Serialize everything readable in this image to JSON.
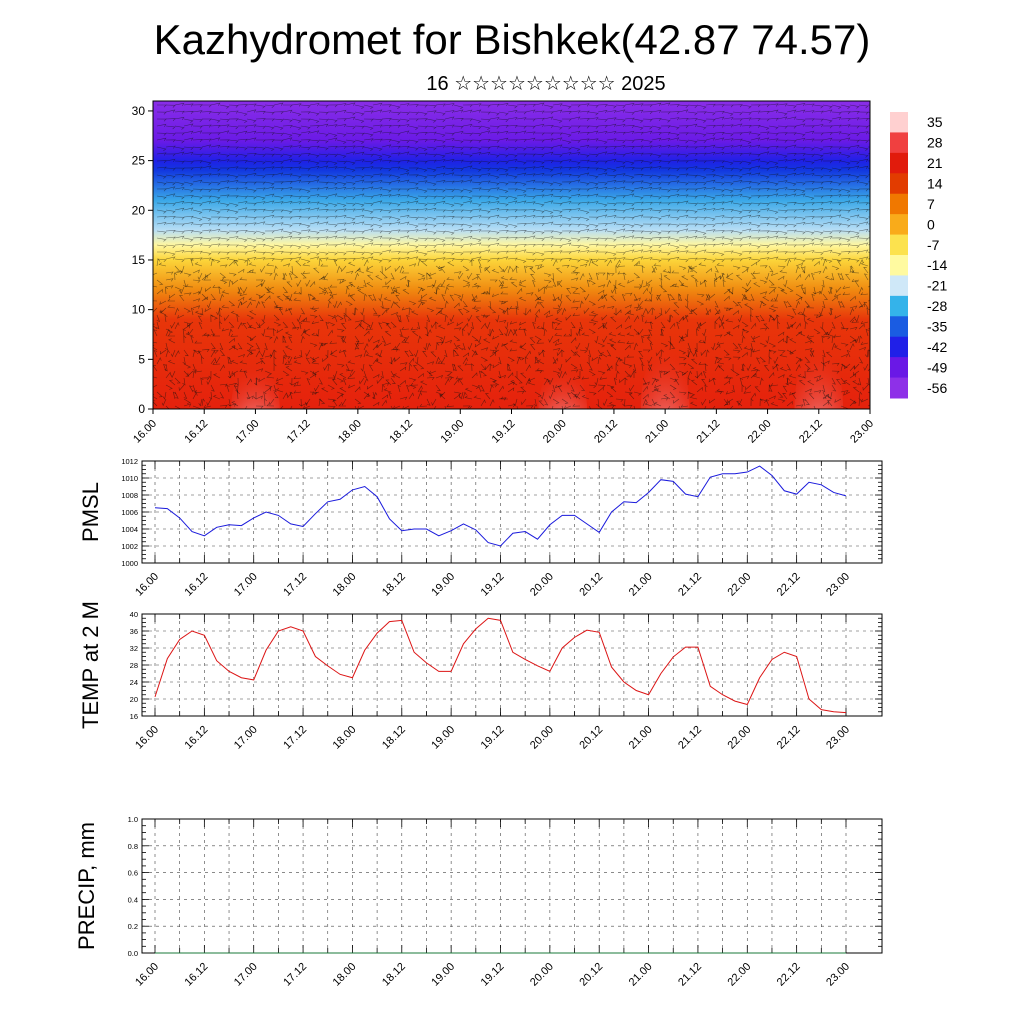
{
  "title": "Kazhydromet for Bishkek(42.87 74.57)",
  "subtitle": "16 ☆☆☆☆☆☆☆☆☆ 2025",
  "colors": {
    "pmsl_line": "#1a1adc",
    "temp_line": "#dc1414",
    "precip_line": "#1a7a3a",
    "grid": "#555555"
  },
  "chart_data": [
    {
      "type": "heatmap",
      "name": "vertical-section",
      "x_tick_labels": [
        "16.00",
        "16.12",
        "17.00",
        "17.12",
        "18.00",
        "18.12",
        "19.00",
        "19.12",
        "20.00",
        "20.12",
        "21.00",
        "21.12",
        "22.00",
        "22.12",
        "23.00"
      ],
      "y_tick_labels": [
        "0",
        "5",
        "10",
        "15",
        "20",
        "25",
        "30"
      ],
      "ylim": [
        0,
        31
      ],
      "legend": {
        "placement": "right",
        "labels": [
          "35",
          "28",
          "21",
          "14",
          "7",
          "0",
          "-7",
          "-14",
          "-21",
          "-28",
          "-35",
          "-42",
          "-49",
          "-56"
        ],
        "color_stops": [
          "#ffd0d0",
          "#f04040",
          "#e11b0c",
          "#e23c00",
          "#f07800",
          "#f9ab1a",
          "#fce24e",
          "#fffaa0",
          "#cfe8f8",
          "#34b3ea",
          "#1a5ce2",
          "#2020e8",
          "#6a18e6",
          "#8e30e8"
        ]
      },
      "bands": [
        {
          "height": 0,
          "color": "#e5210c"
        },
        {
          "height": 9,
          "color": "#e8360a"
        },
        {
          "height": 12,
          "color": "#f08a10"
        },
        {
          "height": 15,
          "color": "#fcd53a"
        },
        {
          "height": 16.5,
          "color": "#fff7a0"
        },
        {
          "height": 18,
          "color": "#b8def5"
        },
        {
          "height": 21,
          "color": "#3aa8e8"
        },
        {
          "height": 24,
          "color": "#1238e0"
        },
        {
          "height": 25,
          "color": "#2020e6"
        },
        {
          "height": 27,
          "color": "#6a1ae6"
        },
        {
          "height": 31,
          "color": "#8a2ee8"
        }
      ],
      "warm_cores": [
        {
          "x": 2.0,
          "peak": 4.8
        },
        {
          "x": 8.0,
          "peak": 4.5
        },
        {
          "x": 10.0,
          "peak": 6.5
        },
        {
          "x": 13.0,
          "peak": 6.5
        },
        {
          "x": 14.8,
          "peak": 4.8
        }
      ]
    },
    {
      "type": "line",
      "name": "pmsl",
      "ylabel": "PMSL",
      "x_tick_labels": [
        "16.00",
        "16.12",
        "17.00",
        "17.12",
        "18.00",
        "18.12",
        "19.00",
        "19.12",
        "20.00",
        "20.12",
        "21.00",
        "21.12",
        "22.00",
        "22.12",
        "23.00"
      ],
      "y_tick_labels": [
        "1000",
        "1002",
        "1004",
        "1006",
        "1008",
        "1010",
        "1012"
      ],
      "ylim": [
        1000,
        1012
      ],
      "series": [
        {
          "values": [
            1006.5,
            1006.4,
            1005.3,
            1003.7,
            1003.2,
            1004.2,
            1004.5,
            1004.4,
            1005.3,
            1006.0,
            1005.6,
            1004.6,
            1004.3,
            1005.8,
            1007.2,
            1007.5,
            1008.6,
            1009.0,
            1007.8,
            1005.2,
            1003.8,
            1004.0,
            1004.0,
            1003.2,
            1003.8,
            1004.6,
            1003.9,
            1002.4,
            1002.0,
            1003.5,
            1003.7,
            1002.8,
            1004.5,
            1005.6,
            1005.6,
            1004.6,
            1003.6,
            1006.0,
            1007.2,
            1007.1,
            1008.3,
            1009.8,
            1009.6,
            1008.1,
            1007.8,
            1010.1,
            1010.5,
            1010.5,
            1010.7,
            1011.4,
            1010.3,
            1008.5,
            1008.1,
            1009.5,
            1009.2,
            1008.3,
            1007.9
          ]
        }
      ]
    },
    {
      "type": "line",
      "name": "temp",
      "ylabel": "TEMP at 2 M",
      "x_tick_labels": [
        "16.00",
        "16.12",
        "17.00",
        "17.12",
        "18.00",
        "18.12",
        "19.00",
        "19.12",
        "20.00",
        "20.12",
        "21.00",
        "21.12",
        "22.00",
        "22.12",
        "23.00"
      ],
      "y_tick_labels": [
        "16",
        "20",
        "24",
        "28",
        "32",
        "36",
        "40"
      ],
      "ylim": [
        16,
        40
      ],
      "series": [
        {
          "values": [
            20.5,
            29.5,
            34.0,
            36.0,
            35.0,
            29.0,
            26.5,
            25.0,
            24.5,
            31.5,
            36.0,
            37.0,
            36.0,
            30.0,
            27.8,
            25.8,
            25.0,
            31.5,
            35.5,
            38.2,
            38.5,
            31.0,
            28.5,
            26.5,
            26.5,
            33.0,
            36.5,
            39.0,
            38.5,
            31.0,
            29.3,
            27.8,
            26.5,
            32.0,
            34.5,
            36.2,
            35.7,
            27.5,
            24.0,
            22.0,
            21.0,
            26.0,
            29.9,
            32.2,
            32.2,
            23.0,
            21.0,
            19.5,
            18.7,
            25.0,
            29.3,
            31.0,
            30.0,
            20.0,
            17.5,
            17.0,
            16.8
          ]
        }
      ]
    },
    {
      "type": "line",
      "name": "precip",
      "ylabel": "PRECIP, mm",
      "x_tick_labels": [
        "16.00",
        "16.12",
        "17.00",
        "17.12",
        "18.00",
        "18.12",
        "19.00",
        "19.12",
        "20.00",
        "20.12",
        "21.00",
        "21.12",
        "22.00",
        "22.12",
        "23.00"
      ],
      "y_tick_labels": [
        "0.0",
        "0.2",
        "0.4",
        "0.6",
        "0.8",
        "1.0"
      ],
      "ylim": [
        0,
        1
      ],
      "series": [
        {
          "values": [
            0,
            0,
            0,
            0,
            0,
            0,
            0,
            0,
            0,
            0,
            0,
            0,
            0,
            0,
            0,
            0,
            0,
            0,
            0,
            0,
            0,
            0,
            0,
            0,
            0,
            0,
            0,
            0,
            0,
            0,
            0,
            0,
            0,
            0,
            0,
            0,
            0,
            0,
            0,
            0,
            0,
            0,
            0,
            0,
            0,
            0,
            0,
            0,
            0,
            0,
            0,
            0,
            0,
            0,
            0,
            0,
            0
          ]
        }
      ]
    }
  ]
}
